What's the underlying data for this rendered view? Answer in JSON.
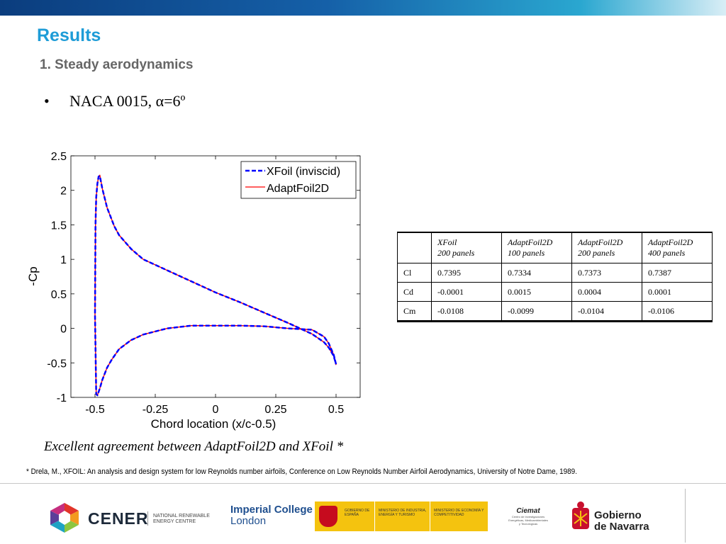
{
  "slide": {
    "title": "Results",
    "subtitle": "1. Steady aerodynamics",
    "bullet_symbol": "•",
    "bullet": "NACA 0015, α=6º",
    "caption": "Excellent agreement between AdaptFoil2D and XFoil *",
    "footnote": "* Drela, M., XFOIL: An analysis and design system for low Reynolds number airfoils, Conference on Low Reynolds Number Airfoil Aerodynamics, University of Notre Dame, 1989."
  },
  "colors": {
    "title": "#1e9cd7",
    "xfoil": "#0000ff",
    "adaptfoil": "#ff0000"
  },
  "table": {
    "headers": [
      [
        "",
        ""
      ],
      [
        "XFoil",
        "200 panels"
      ],
      [
        "AdaptFoil2D",
        "100 panels"
      ],
      [
        "AdaptFoil2D",
        "200 panels"
      ],
      [
        "AdaptFoil2D",
        "400 panels"
      ]
    ],
    "rows": [
      [
        "Cl",
        "0.7395",
        "0.7334",
        "0.7373",
        "0.7387"
      ],
      [
        "Cd",
        "-0.0001",
        "0.0015",
        "0.0004",
        "0.0001"
      ],
      [
        "Cm",
        "-0.0108",
        "-0.0099",
        "-0.0104",
        "-0.0106"
      ]
    ]
  },
  "logos": {
    "cener": "CENER",
    "nrec_line1": "NATIONAL RENEWABLE",
    "nrec_line2": "ENERGY CENTRE",
    "imperial_line1": "Imperial College",
    "imperial_line2": "London",
    "gobierno_espana": "GOBIERNO DE ESPAÑA",
    "ministerio_industria": "MINISTERIO DE INDUSTRIA, ENERGÍA Y TURISMO",
    "ministerio_economia": "MINISTERIO DE ECONOMÍA Y COMPETITIVIDAD",
    "ciemat": "Ciemat",
    "ciemat_sub": "Centro de Investigaciones Energéticas, Medioambientales y Tecnológicas",
    "navarra_line1": "Gobierno",
    "navarra_line2": "de Navarra"
  },
  "chart_data": {
    "type": "line",
    "xlabel": "Chord location (x/c-0.5)",
    "ylabel": "-Cp",
    "xlim": [
      -0.6,
      0.6
    ],
    "ylim": [
      -1,
      2.5
    ],
    "xticks": [
      -0.5,
      -0.25,
      0,
      0.25,
      0.5
    ],
    "xtick_labels": [
      "-0.5",
      "-0.25",
      "0",
      "0.25",
      "0.5"
    ],
    "yticks": [
      -1,
      -0.5,
      0,
      0.5,
      1,
      1.5,
      2,
      2.5
    ],
    "ytick_labels": [
      "-1",
      "-0.5",
      "0",
      "0.5",
      "1",
      "1.5",
      "2",
      "2.5"
    ],
    "legend_position": "top-right",
    "grid": false,
    "series": [
      {
        "name": "XFoil (inviscid)",
        "style": "dashed",
        "x": [
          0.5,
          0.49,
          0.47,
          0.45,
          0.4,
          0.3,
          0.2,
          0.1,
          0.0,
          -0.1,
          -0.2,
          -0.3,
          -0.35,
          -0.4,
          -0.43,
          -0.45,
          -0.47,
          -0.48,
          -0.49,
          -0.495,
          -0.5,
          -0.498,
          -0.495,
          -0.49,
          -0.485,
          -0.48,
          -0.47,
          -0.45,
          -0.42,
          -0.4,
          -0.35,
          -0.3,
          -0.2,
          -0.1,
          0.0,
          0.1,
          0.2,
          0.3,
          0.4,
          0.45,
          0.47,
          0.49,
          0.5
        ],
        "y": [
          -0.52,
          -0.38,
          -0.22,
          -0.12,
          -0.02,
          0.0,
          0.03,
          0.04,
          0.04,
          0.04,
          0.0,
          -0.09,
          -0.17,
          -0.3,
          -0.45,
          -0.57,
          -0.75,
          -0.87,
          -0.97,
          -0.95,
          0.2,
          1.5,
          1.9,
          2.1,
          2.2,
          2.21,
          2.03,
          1.75,
          1.48,
          1.35,
          1.15,
          1.0,
          0.84,
          0.68,
          0.52,
          0.38,
          0.23,
          0.08,
          -0.08,
          -0.2,
          -0.28,
          -0.4,
          -0.52
        ]
      },
      {
        "name": "AdaptFoil2D",
        "style": "solid",
        "x": [
          0.5,
          0.49,
          0.47,
          0.45,
          0.4,
          0.3,
          0.2,
          0.1,
          0.0,
          -0.1,
          -0.2,
          -0.3,
          -0.35,
          -0.4,
          -0.43,
          -0.45,
          -0.47,
          -0.48,
          -0.49,
          -0.495,
          -0.5,
          -0.498,
          -0.495,
          -0.49,
          -0.485,
          -0.48,
          -0.47,
          -0.45,
          -0.42,
          -0.4,
          -0.35,
          -0.3,
          -0.2,
          -0.1,
          0.0,
          0.1,
          0.2,
          0.3,
          0.4,
          0.45,
          0.47,
          0.49,
          0.5
        ],
        "y": [
          -0.53,
          -0.38,
          -0.22,
          -0.12,
          -0.02,
          0.0,
          0.03,
          0.04,
          0.04,
          0.04,
          0.0,
          -0.09,
          -0.17,
          -0.3,
          -0.45,
          -0.57,
          -0.75,
          -0.87,
          -0.97,
          -0.96,
          0.2,
          1.5,
          1.9,
          2.1,
          2.2,
          2.22,
          2.03,
          1.75,
          1.48,
          1.35,
          1.15,
          1.0,
          0.84,
          0.68,
          0.52,
          0.38,
          0.23,
          0.08,
          -0.08,
          -0.2,
          -0.28,
          -0.4,
          -0.53
        ]
      }
    ]
  }
}
